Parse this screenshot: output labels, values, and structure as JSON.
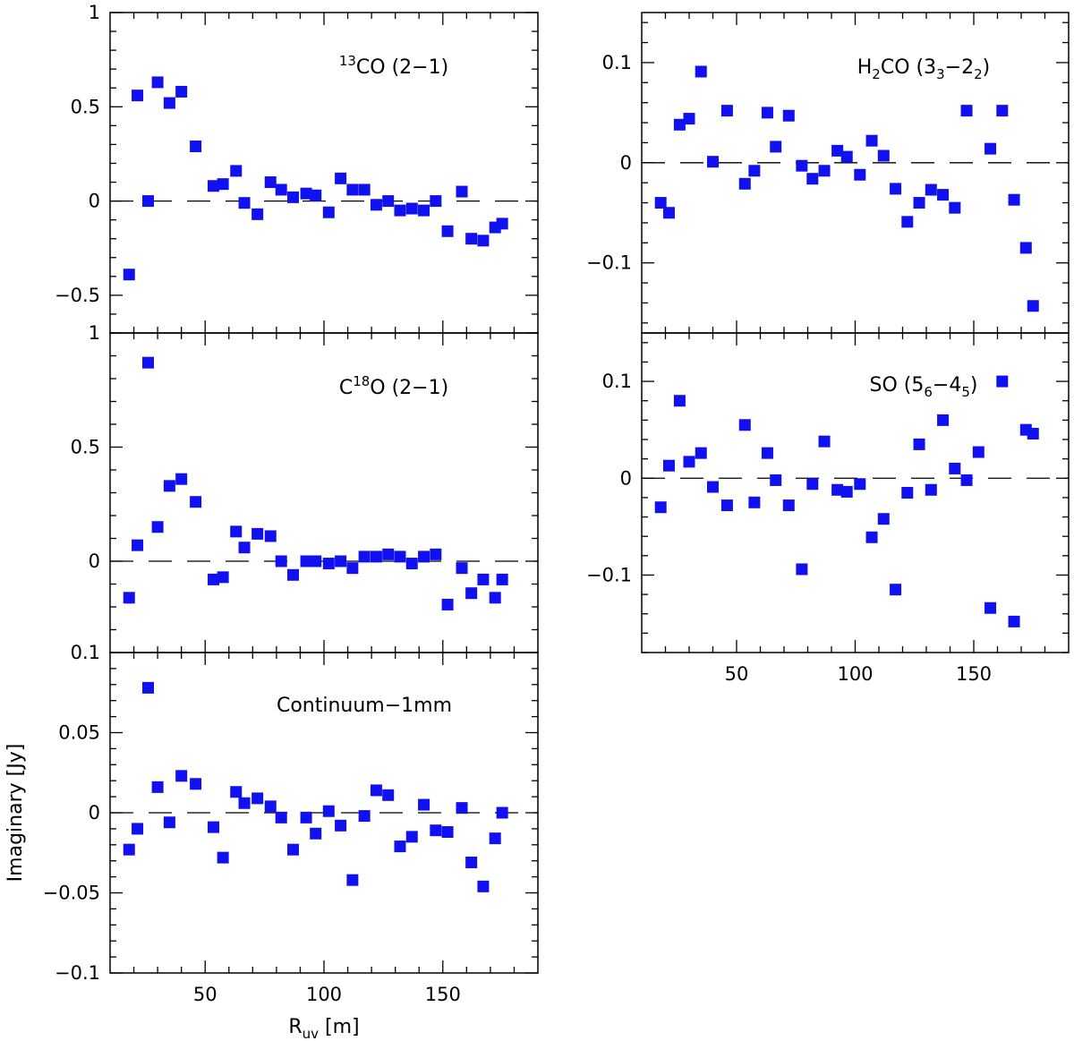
{
  "figure": {
    "xlabel": "R",
    "xlabel_sub": "uv",
    "xlabel_unit": " [m]",
    "ylabel": "Imaginary [Jy]"
  },
  "chart_data": [
    {
      "id": "13co",
      "type": "scatter",
      "title": "¹³CO (2−1)",
      "title_parts": [
        {
          "t": "13",
          "k": "sup"
        },
        {
          "t": "CO (2−1)",
          "k": "n"
        }
      ],
      "xlim": [
        10,
        190
      ],
      "ylim": [
        -0.7,
        1.0
      ],
      "yticks": [
        -0.5,
        0,
        0.5,
        1
      ],
      "ytick_labels": [
        "−0.5",
        "0",
        "0.5",
        "1"
      ],
      "minor_y_step": 0.1,
      "ytick_labels_top_hidden": false,
      "show_xtick_labels": false,
      "x": [
        18,
        21.5,
        26,
        30,
        35,
        40,
        46,
        53.5,
        57.5,
        63,
        66.5,
        72,
        77.5,
        82,
        87,
        92.5,
        96.5,
        102,
        107,
        112,
        117,
        122,
        127,
        132,
        137,
        142,
        147,
        152,
        158,
        162,
        167,
        172,
        175
      ],
      "y": [
        -0.39,
        0.56,
        0.0,
        0.63,
        0.52,
        0.58,
        0.29,
        0.08,
        0.09,
        0.16,
        -0.01,
        -0.07,
        0.1,
        0.06,
        0.02,
        0.04,
        0.03,
        -0.06,
        0.12,
        0.06,
        0.06,
        -0.02,
        0.0,
        -0.05,
        -0.04,
        -0.05,
        0.0,
        -0.16,
        0.05,
        -0.2,
        -0.21,
        -0.14,
        -0.12
      ]
    },
    {
      "id": "c18o",
      "type": "scatter",
      "title": "C¹⁸O (2−1)",
      "title_parts": [
        {
          "t": "C",
          "k": "n"
        },
        {
          "t": "18",
          "k": "sup"
        },
        {
          "t": "O (2−1)",
          "k": "n"
        }
      ],
      "xlim": [
        10,
        190
      ],
      "ylim": [
        -0.4,
        1.0
      ],
      "yticks": [
        0,
        0.5,
        1
      ],
      "ytick_labels": [
        "0",
        "0.5",
        "1"
      ],
      "minor_y_step": 0.1,
      "ytick_labels_top_hidden": false,
      "show_xtick_labels": false,
      "x": [
        18,
        21.5,
        26,
        30,
        35,
        40,
        46,
        53.5,
        57.5,
        63,
        66.5,
        72,
        77.5,
        82,
        87,
        92.5,
        96.5,
        102,
        107,
        112,
        117,
        122,
        127,
        132,
        137,
        142,
        147,
        152,
        158,
        162,
        167,
        172,
        175
      ],
      "y": [
        -0.16,
        0.07,
        0.87,
        0.15,
        0.33,
        0.36,
        0.26,
        -0.08,
        -0.07,
        0.13,
        0.06,
        0.12,
        0.11,
        0.0,
        -0.06,
        0.0,
        0.0,
        -0.01,
        0.0,
        -0.03,
        0.02,
        0.02,
        0.03,
        0.02,
        -0.01,
        0.02,
        0.03,
        -0.19,
        -0.03,
        -0.14,
        -0.08,
        -0.16,
        -0.08
      ]
    },
    {
      "id": "continuum",
      "type": "scatter",
      "title": "Continuum−1mm",
      "title_parts": [
        {
          "t": "Continuum−1mm",
          "k": "n"
        }
      ],
      "xlim": [
        10,
        190
      ],
      "ylim": [
        -0.1,
        0.1
      ],
      "yticks": [
        -0.1,
        -0.05,
        0,
        0.05,
        0.1
      ],
      "ytick_labels": [
        "−0.1",
        "−0.05",
        "0",
        "0.05",
        "0.1"
      ],
      "minor_y_step": 0.01,
      "ytick_labels_top_hidden": false,
      "show_xtick_labels": true,
      "xticks": [
        50,
        100,
        150
      ],
      "xtick_labels": [
        "50",
        "100",
        "150"
      ],
      "x": [
        18,
        21.5,
        26,
        30,
        35,
        40,
        46,
        53.5,
        57.5,
        63,
        66.5,
        72,
        77.5,
        82,
        87,
        92.5,
        96.5,
        102,
        107,
        112,
        117,
        122,
        127,
        132,
        137,
        142,
        147,
        152,
        158,
        162,
        167,
        172,
        175
      ],
      "y": [
        -0.023,
        -0.01,
        0.078,
        0.016,
        -0.006,
        0.023,
        0.018,
        -0.009,
        -0.028,
        0.013,
        0.006,
        0.009,
        0.004,
        -0.003,
        -0.023,
        -0.003,
        -0.013,
        0.001,
        -0.008,
        -0.042,
        -0.002,
        0.014,
        0.011,
        -0.021,
        -0.015,
        0.005,
        -0.011,
        -0.012,
        0.003,
        -0.031,
        -0.046,
        -0.016,
        0.0
      ]
    },
    {
      "id": "h2co",
      "type": "scatter",
      "title": "H₂CO (3₃−2₂)",
      "title_parts": [
        {
          "t": "H",
          "k": "n"
        },
        {
          "t": "2",
          "k": "sub"
        },
        {
          "t": "CO (3",
          "k": "n"
        },
        {
          "t": "3",
          "k": "sub"
        },
        {
          "t": "−2",
          "k": "n"
        },
        {
          "t": "2",
          "k": "sub"
        },
        {
          "t": ")",
          "k": "n"
        }
      ],
      "xlim": [
        10,
        190
      ],
      "ylim": [
        -0.17,
        0.15
      ],
      "yticks": [
        -0.1,
        0,
        0.1
      ],
      "ytick_labels": [
        "−0.1",
        "0",
        "0.1"
      ],
      "minor_y_step": 0.02,
      "ytick_labels_top_hidden": false,
      "show_xtick_labels": false,
      "x": [
        18,
        21.5,
        26,
        30,
        35,
        40,
        46,
        53.5,
        57.5,
        63,
        66.5,
        72,
        77.5,
        82,
        87,
        92.5,
        96.5,
        102,
        107,
        112,
        117,
        122,
        127,
        132,
        137,
        142,
        147,
        157,
        162,
        167,
        172,
        175
      ],
      "y": [
        -0.04,
        -0.05,
        0.038,
        0.044,
        0.091,
        0.001,
        0.052,
        -0.021,
        -0.008,
        0.05,
        0.016,
        0.047,
        -0.003,
        -0.016,
        -0.008,
        0.012,
        0.006,
        -0.012,
        0.022,
        0.007,
        -0.026,
        -0.059,
        -0.04,
        -0.027,
        -0.032,
        -0.045,
        0.052,
        0.014,
        0.052,
        -0.037,
        -0.085,
        -0.143
      ]
    },
    {
      "id": "so",
      "type": "scatter",
      "title": "SO (5₆−4₅)",
      "title_parts": [
        {
          "t": "SO (5",
          "k": "n"
        },
        {
          "t": "6",
          "k": "sub"
        },
        {
          "t": "−4",
          "k": "n"
        },
        {
          "t": "5",
          "k": "sub"
        },
        {
          "t": ")",
          "k": "n"
        }
      ],
      "xlim": [
        10,
        190
      ],
      "ylim": [
        -0.18,
        0.15
      ],
      "yticks": [
        -0.1,
        0,
        0.1
      ],
      "ytick_labels": [
        "−0.1",
        "0",
        "0.1"
      ],
      "minor_y_step": 0.02,
      "ytick_labels_top_hidden": false,
      "show_xtick_labels": true,
      "xticks": [
        50,
        100,
        150
      ],
      "xtick_labels": [
        "50",
        "100",
        "150"
      ],
      "x": [
        18,
        21.5,
        26,
        30,
        35,
        40,
        46,
        53.5,
        57.5,
        63,
        66.5,
        72,
        77.5,
        82,
        87,
        92.5,
        96.5,
        102,
        107,
        112,
        117,
        122,
        127,
        132,
        137,
        142,
        147,
        152,
        157,
        162,
        167,
        172,
        175
      ],
      "y": [
        -0.03,
        0.013,
        0.08,
        0.017,
        0.026,
        -0.009,
        -0.028,
        0.055,
        -0.025,
        0.026,
        -0.002,
        -0.028,
        -0.094,
        -0.006,
        0.038,
        -0.012,
        -0.014,
        -0.006,
        -0.061,
        -0.042,
        -0.115,
        -0.015,
        0.035,
        -0.012,
        0.06,
        0.01,
        -0.002,
        0.027,
        -0.134,
        0.1,
        -0.148,
        0.05,
        0.046
      ]
    }
  ]
}
